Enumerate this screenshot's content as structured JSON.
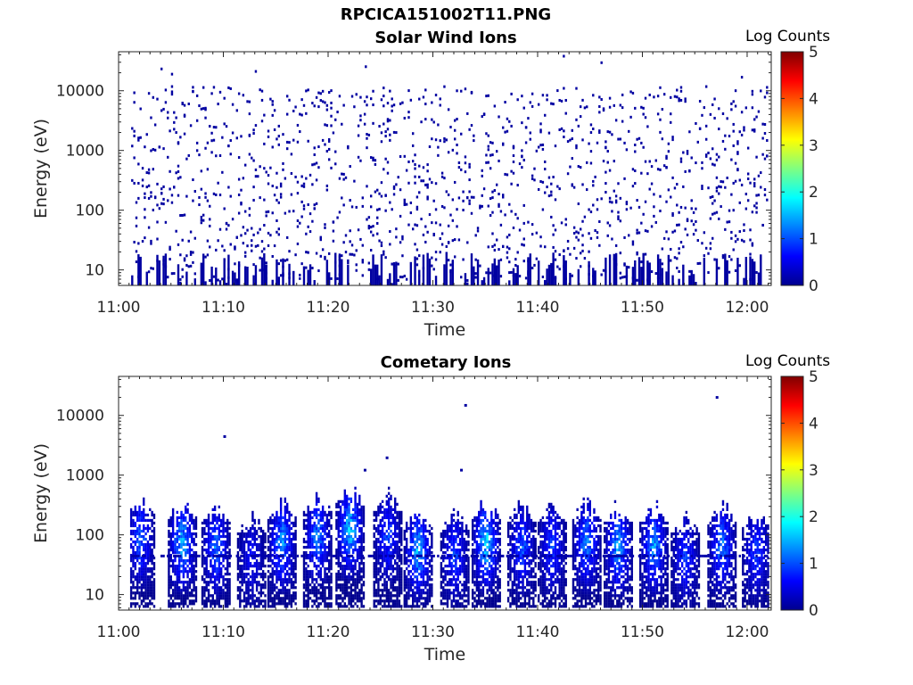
{
  "figure": {
    "title": "RPCICA151002T11.PNG"
  },
  "colormap": [
    "#00008f",
    "#0000ff",
    "#0080ff",
    "#00ffff",
    "#80ff80",
    "#ffff00",
    "#ff8000",
    "#ff0000",
    "#800000"
  ],
  "chart_data": [
    {
      "type": "heatmap",
      "title": "Solar Wind Ions",
      "xlabel": "Time",
      "ylabel": "Energy (eV)",
      "x_ticks": [
        "11:00",
        "11:10",
        "11:20",
        "11:30",
        "11:40",
        "11:50",
        "12:00"
      ],
      "x_range_minutes": [
        0,
        62.3
      ],
      "y_scale": "log",
      "y_range": [
        5.5,
        45000
      ],
      "y_ticks": [
        10,
        100,
        1000,
        10000
      ],
      "y_tick_labels": [
        "10",
        "100",
        "1000",
        "10000"
      ],
      "colorbar": {
        "label": "Log Counts",
        "range": [
          0,
          5
        ],
        "ticks": [
          "0",
          "1",
          "2",
          "3",
          "4",
          "5"
        ]
      },
      "data_start_minute": 1.2,
      "data_end_minute": 62.0,
      "description_of_values": "sparse single-count pixels (log counts ~0) across 10 eV - 10 keV"
    },
    {
      "type": "heatmap",
      "title": "Cometary Ions",
      "xlabel": "Time",
      "ylabel": "Energy (eV)",
      "x_ticks": [
        "11:00",
        "11:10",
        "11:20",
        "11:30",
        "11:40",
        "11:50",
        "12:00"
      ],
      "x_range_minutes": [
        0,
        62.3
      ],
      "y_scale": "log",
      "y_range": [
        5.5,
        45000
      ],
      "y_ticks": [
        10,
        100,
        1000,
        10000
      ],
      "y_tick_labels": [
        "10",
        "100",
        "1000",
        "10000"
      ],
      "colorbar": {
        "label": "Log Counts",
        "range": [
          0,
          5
        ],
        "ticks": [
          "0",
          "1",
          "2",
          "3",
          "4",
          "5"
        ]
      },
      "bursts": [
        {
          "minute": 2.0,
          "peak_eV": 80,
          "max_log": 1.4
        },
        {
          "minute": 6.0,
          "peak_eV": 70,
          "max_log": 1.9
        },
        {
          "minute": 9.2,
          "peak_eV": 60,
          "max_log": 1.5
        },
        {
          "minute": 12.6,
          "peak_eV": 40,
          "max_log": 0.8
        },
        {
          "minute": 15.5,
          "peak_eV": 70,
          "max_log": 1.7
        },
        {
          "minute": 18.9,
          "peak_eV": 90,
          "max_log": 1.6
        },
        {
          "minute": 22.0,
          "peak_eV": 120,
          "max_log": 2.0
        },
        {
          "minute": 25.6,
          "peak_eV": 90,
          "max_log": 1.2
        },
        {
          "minute": 28.5,
          "peak_eV": 50,
          "max_log": 1.9
        },
        {
          "minute": 32.0,
          "peak_eV": 45,
          "max_log": 1.2
        },
        {
          "minute": 35.0,
          "peak_eV": 70,
          "max_log": 2.1
        },
        {
          "minute": 38.4,
          "peak_eV": 60,
          "max_log": 1.3
        },
        {
          "minute": 41.3,
          "peak_eV": 60,
          "max_log": 1.2
        },
        {
          "minute": 44.6,
          "peak_eV": 70,
          "max_log": 1.6
        },
        {
          "minute": 47.6,
          "peak_eV": 60,
          "max_log": 1.8
        },
        {
          "minute": 51.0,
          "peak_eV": 60,
          "max_log": 1.7
        },
        {
          "minute": 54.0,
          "peak_eV": 40,
          "max_log": 1.1
        },
        {
          "minute": 57.5,
          "peak_eV": 60,
          "max_log": 1.5
        },
        {
          "minute": 60.8,
          "peak_eV": 50,
          "max_log": 1.2
        }
      ],
      "outliers": [
        {
          "minute": 10.0,
          "eV": 4200
        },
        {
          "minute": 23.4,
          "eV": 1150
        },
        {
          "minute": 25.5,
          "eV": 1850
        },
        {
          "minute": 32.6,
          "eV": 1150
        },
        {
          "minute": 33.0,
          "eV": 14000
        },
        {
          "minute": 57.0,
          "eV": 19000
        }
      ]
    }
  ]
}
